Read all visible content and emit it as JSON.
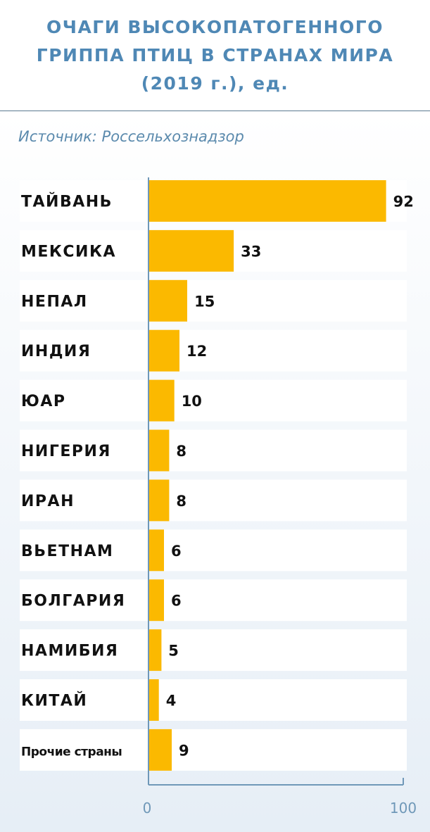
{
  "chart_data": {
    "type": "bar",
    "orientation": "horizontal",
    "title": "ОЧАГИ ВЫСОКОПАТОГЕННОГО ГРИППА ПТИЦ В СТРАНАХ МИРА (2019 г.), ед.",
    "subtitle": "Источник: Россельхознадзор",
    "categories": [
      "ТАЙВАНЬ",
      "МЕКСИКА",
      "НЕПАЛ",
      "ИНДИЯ",
      "ЮАР",
      "НИГЕРИЯ",
      "ИРАН",
      "ВЬЕТНАМ",
      "БОЛГАРИЯ",
      "НАМИБИЯ",
      "КИТАЙ",
      "Прочие страны"
    ],
    "values": [
      92,
      33,
      15,
      12,
      10,
      8,
      8,
      6,
      6,
      5,
      4,
      9
    ],
    "xlim": [
      0,
      100
    ],
    "x_ticks": [
      "0",
      "100"
    ],
    "grid": false,
    "bar_color": "#fbb900",
    "title_color": "#4f88b5"
  }
}
